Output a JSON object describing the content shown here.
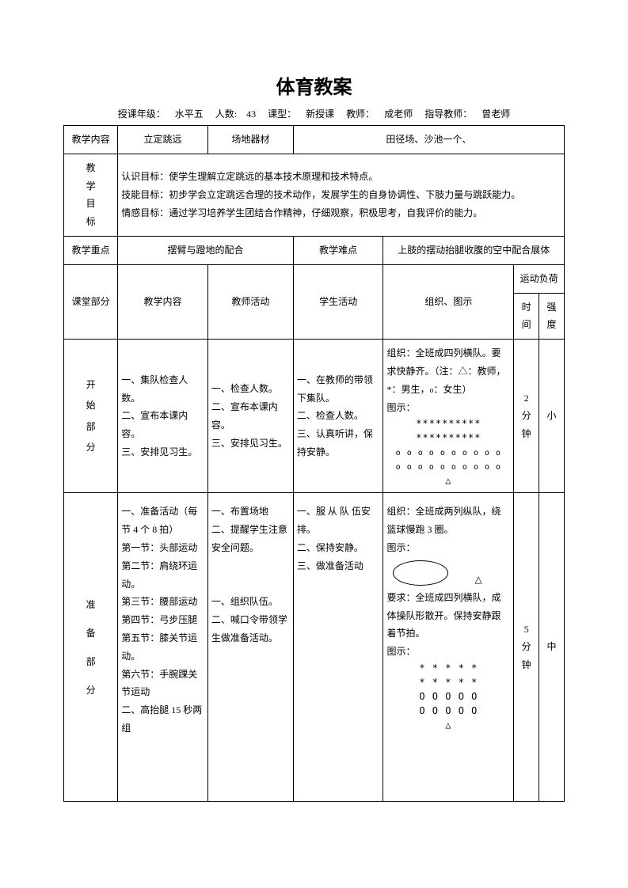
{
  "title": "体育教案",
  "meta": {
    "grade_label": "授课年级：",
    "grade": "水平五",
    "count_label": "人数:",
    "count": "43",
    "type_label": "课型：",
    "type": "新授课",
    "teacher_label": "教师：",
    "teacher": "成老师",
    "advisor_label": "指导教师：",
    "advisor": "曾老师"
  },
  "row1": {
    "c1": "教学内容",
    "c2": "立定跳远",
    "c3": "场地器材",
    "c4": "田径场、沙池一个、"
  },
  "row2": {
    "label_chars": [
      "教",
      "学",
      "目",
      "标"
    ],
    "text": "认识目标：使学生理解立定跳远的基本技术原理和技术特点。\n技能目标：初步学会立定跳远合理的技术动作，发展学生的自身协调性、下肢力量与跳跃能力。\n情感目标：通过学习培养学生团结合作精神，仔细观察，积极思考，自我评价的能力。"
  },
  "row3": {
    "c1": "教学重点",
    "c2": "摆臂与蹬地的配合",
    "c3": "教学难点",
    "c4": "上肢的摆动抬腿收腹的空中配合展体"
  },
  "headers": {
    "section": "课堂部分",
    "content": "教学内容",
    "teacher_act": "教师活动",
    "student_act": "学生活动",
    "org": "组织、图示",
    "load": "运动负荷",
    "time": "时间",
    "intensity": "强度"
  },
  "start": {
    "label_chars": [
      "开",
      "始",
      "部",
      "分"
    ],
    "content": "一、集队检查人数。\n二、宣布本课内容。\n三、安排见习生。",
    "teacher": "一、检查人数。\n二、宣布本课内容。\n三、安排见习生。",
    "student": "一、在教师的带领下集队。\n二、检查人数。\n三、认真听讲，保持安静。",
    "org_text_top": "组织：全班成四列横队。要求快静齐。（注：△：教师，*：男生，<small>o</small>：女生）\n图示：",
    "org_diagram": "**********\n**********\n<small>o o o o o o o o o o</small>\n<small>o o o o o o o o o o</small>\n△",
    "time": "2\n分\n钟",
    "intensity": "小"
  },
  "prep": {
    "label_chars": [
      "准",
      "备",
      "部",
      "分"
    ],
    "content": "一、准备活动（每节 4 个 8 拍）\n第一节：头部运动\n第二节：肩绕环运动。\n第三节：腰部运动\n第四节：弓步压腿\n第五节：膝关节运动。\n第六节：手腕踝关节运动\n二、高抬腿 15 秒两组",
    "teacher": "一、布置场地\n二、提醒学生注意安全问题。\n\n\n一、组织队伍。\n二、喊口令带领学生做准备活动。",
    "student": "一、服 从 队 伍安排。\n二、保持安静。\n三、做准备活动",
    "org_text_top": "组织：全班成两列纵队，绕篮球慢跑 3 圈。\n图示：",
    "org_tri_after_ellipse": "△",
    "org_text_mid": "要求：全班成四列横队，成体操队形散开。保持安静跟着节拍。\n图示：",
    "org_diagram": "*  *  *  *  *\n*  *  *  *  *\nO  O  O  O  O\nO  O  O  O  O\n△",
    "time": "5\n分\n钟",
    "intensity": "中"
  }
}
